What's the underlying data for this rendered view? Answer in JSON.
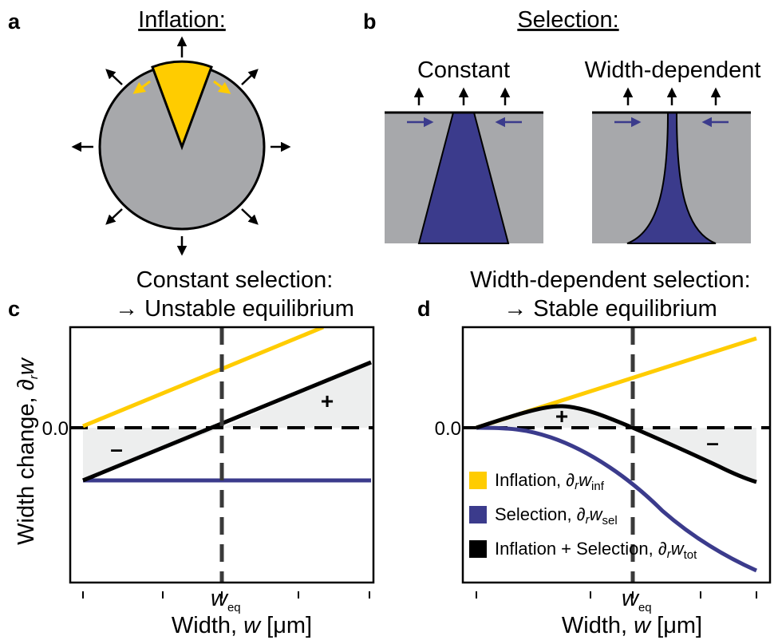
{
  "panel_a": {
    "letter": "a",
    "title": "Inflation:"
  },
  "panel_b": {
    "letter": "b",
    "title": "Selection:",
    "left_label": "Constant",
    "right_label": "Width-dependent"
  },
  "panel_c": {
    "letter": "c",
    "title_line1": "Constant selection:",
    "title_line2": "→ Unstable equilibrium",
    "ylabel": "Width change, ∂",
    "ylabel_sub": "r",
    "ylabel_var": "w",
    "zero_tick": "0.0",
    "xlabel_prefix": "Width, ",
    "xlabel_var": "w",
    "xlabel_unit": " [μm]",
    "weq_var": "w",
    "weq_sub": "eq",
    "plus": "+",
    "minus": "–"
  },
  "panel_d": {
    "letter": "d",
    "title_line1": "Width-dependent selection:",
    "title_line2": "→ Stable equilibrium",
    "zero_tick": "0.0",
    "xlabel_prefix": "Width, ",
    "xlabel_var": "w",
    "xlabel_unit": " [μm]",
    "weq_var": "w",
    "weq_sub": "eq",
    "plus": "+",
    "minus": "–",
    "legend": [
      {
        "label": "Inflation, ∂",
        "sub1": "r",
        "var": "w",
        "sub2": "inf",
        "color": "#FFCC00"
      },
      {
        "label": "Selection, ∂",
        "sub1": "r",
        "var": "w",
        "sub2": "sel",
        "color": "#3B3B8C"
      },
      {
        "label": "Inflation + Selection, ∂",
        "sub1": "r",
        "var": "w",
        "sub2": "tot",
        "color": "#000000"
      }
    ]
  },
  "colors": {
    "inflation": "#FFCC00",
    "selection": "#3B3B8C",
    "total": "#000000",
    "gray_region": "#A7A8AB",
    "shade": "#EDEEEE",
    "dashed": "#3A3A3A"
  },
  "icons": [
    "arrow-up-icon",
    "arrow-right-icon",
    "arrow-left-icon",
    "arrow-diagonal-icon"
  ]
}
